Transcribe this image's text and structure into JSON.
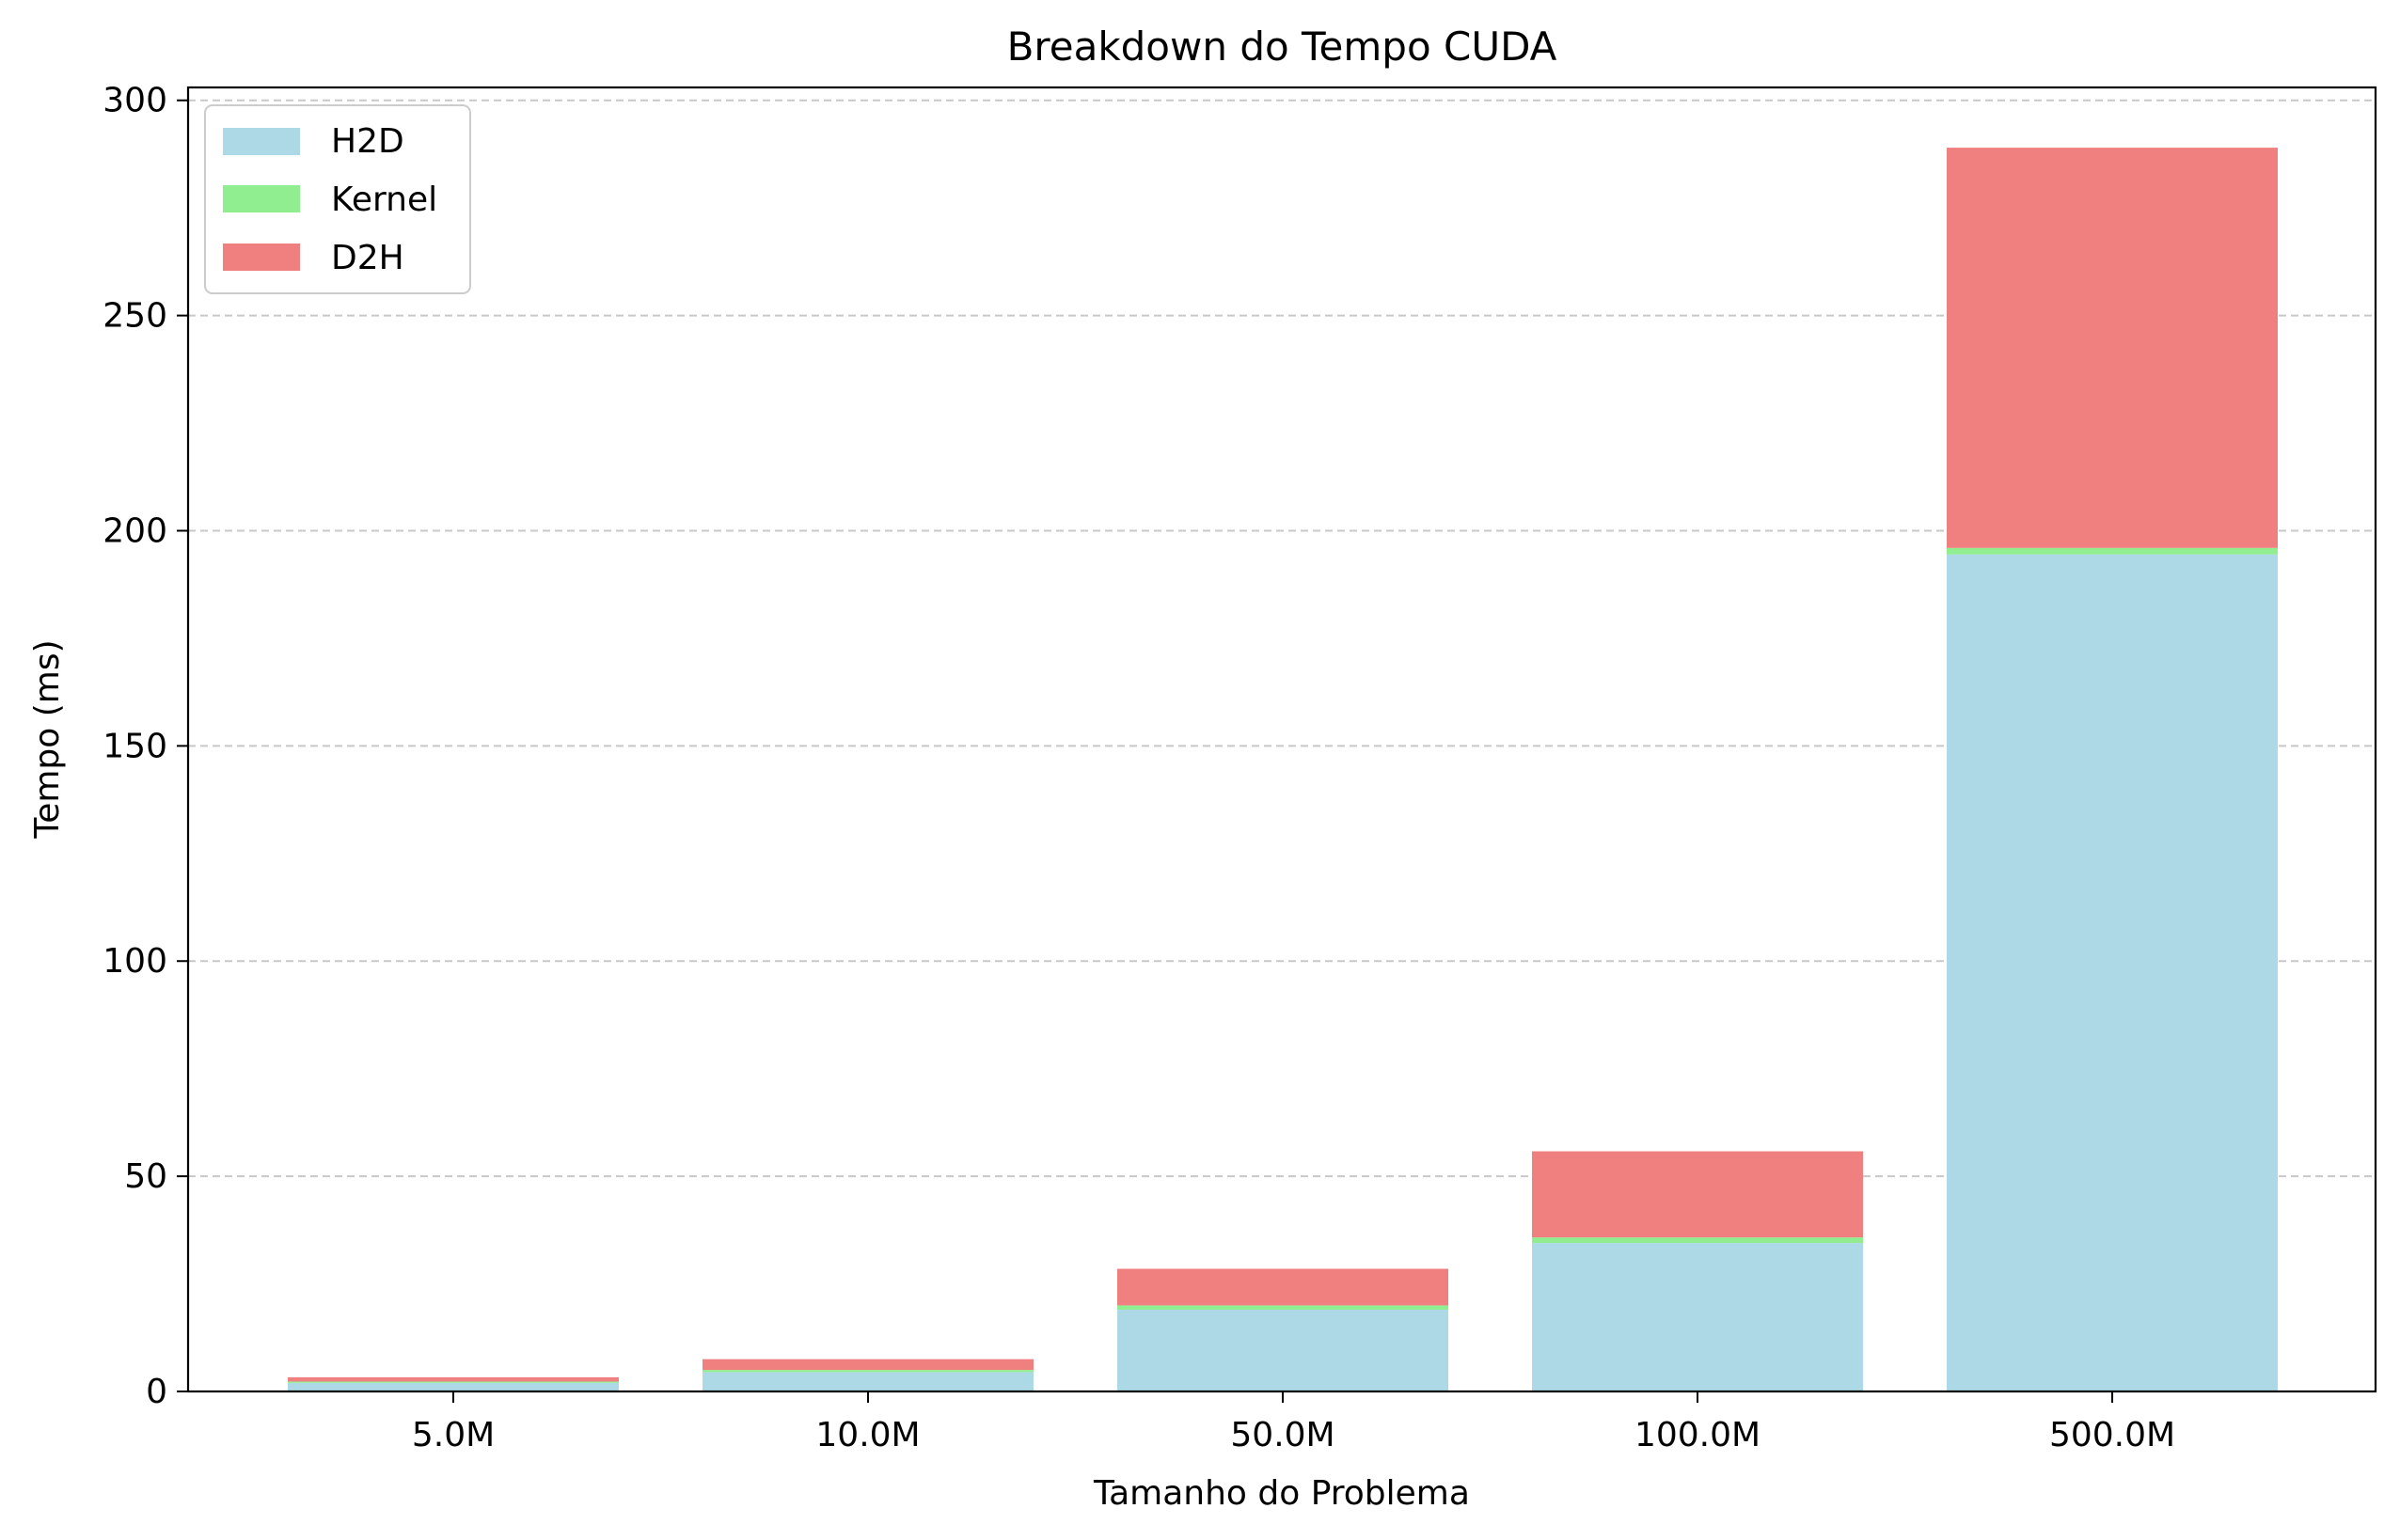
{
  "chart_data": {
    "type": "bar",
    "stacked": true,
    "title": "Breakdown do Tempo CUDA",
    "xlabel": "Tamanho do Problema",
    "ylabel": "Tempo (ms)",
    "categories": [
      "5.0M",
      "10.0M",
      "50.0M",
      "100.0M",
      "500.0M"
    ],
    "series": [
      {
        "name": "H2D",
        "color": "#add8e6",
        "values": [
          2.0,
          4.5,
          19.0,
          34.5,
          194.5
        ]
      },
      {
        "name": "Kernel",
        "color": "#90ee90",
        "values": [
          0.3,
          0.5,
          1.0,
          1.3,
          1.5
        ]
      },
      {
        "name": "D2H",
        "color": "#f08080",
        "values": [
          1.0,
          2.5,
          8.5,
          20.0,
          93.0
        ]
      }
    ],
    "ylim": [
      0,
      303
    ],
    "yticks": [
      0,
      50,
      100,
      150,
      200,
      250,
      300
    ],
    "grid": "y-dashed",
    "legend_position": "upper-left"
  }
}
